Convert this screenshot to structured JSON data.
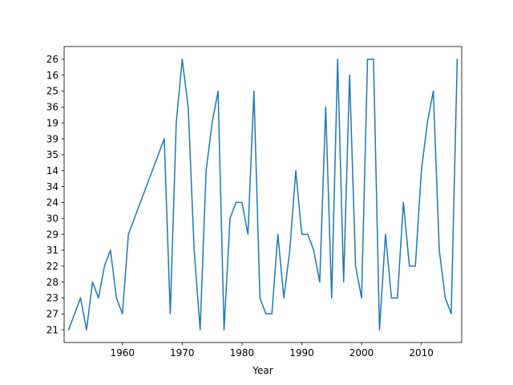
{
  "chart_data": {
    "type": "line",
    "title": "",
    "xlabel": "Year",
    "ylabel": "",
    "xlim": [
      1950.25,
      2016.75
    ],
    "x_ticks": [
      1960,
      1970,
      1980,
      1990,
      2000,
      2010
    ],
    "y_categories": [
      "21",
      "27",
      "23",
      "28",
      "22",
      "31",
      "29",
      "30",
      "24",
      "34",
      "14",
      "35",
      "39",
      "19",
      "36",
      "25",
      "16",
      "26"
    ],
    "y_tick_order": [
      "14",
      "16",
      "19",
      "21",
      "22",
      "23",
      "24",
      "25",
      "26",
      "27",
      "28",
      "29",
      "30",
      "31",
      "34",
      "35",
      "36",
      "39"
    ],
    "grid": false,
    "series": [
      {
        "color": "#1f77b4",
        "x": [
          1951,
          1952,
          1953,
          1954,
          1955,
          1956,
          1957,
          1958,
          1959,
          1960,
          1961,
          1962,
          1963,
          1964,
          1965,
          1966,
          1967,
          1968,
          1969,
          1970,
          1971,
          1972,
          1973,
          1974,
          1975,
          1976,
          1977,
          1978,
          1979,
          1980,
          1981,
          1982,
          1983,
          1984,
          1985,
          1986,
          1987,
          1988,
          1989,
          1990,
          1991,
          1992,
          1993,
          1994,
          1995,
          1996,
          1997,
          1998,
          1999,
          2000,
          2001,
          2002,
          2003,
          2004,
          2005,
          2006,
          2007,
          2008,
          2009,
          2010,
          2011,
          2012,
          2013,
          2014,
          2015,
          2016
        ],
        "y": [
          "21",
          "27",
          "23",
          "21",
          "28",
          "23",
          "22",
          "31",
          "23",
          "27",
          "29",
          "30",
          "24",
          "34",
          "14",
          "35",
          "39",
          "27",
          "19",
          "26",
          "36",
          "31",
          "21",
          "14",
          "19",
          "25",
          "21",
          "30",
          "24",
          "24",
          "29",
          "25",
          "23",
          "27",
          "27",
          "29",
          "23",
          "31",
          "14",
          "29",
          "29",
          "31",
          "28",
          "36",
          "23",
          "26",
          "28",
          "16",
          "22",
          "23",
          "26",
          "26",
          "21",
          "29",
          "23",
          "23",
          "24",
          "22",
          "22",
          "14",
          "19",
          "25",
          "31",
          "23",
          "27",
          "26"
        ]
      }
    ]
  },
  "colors": {
    "line": "#1f77b4",
    "axes": "#000000",
    "background": "#ffffff"
  }
}
